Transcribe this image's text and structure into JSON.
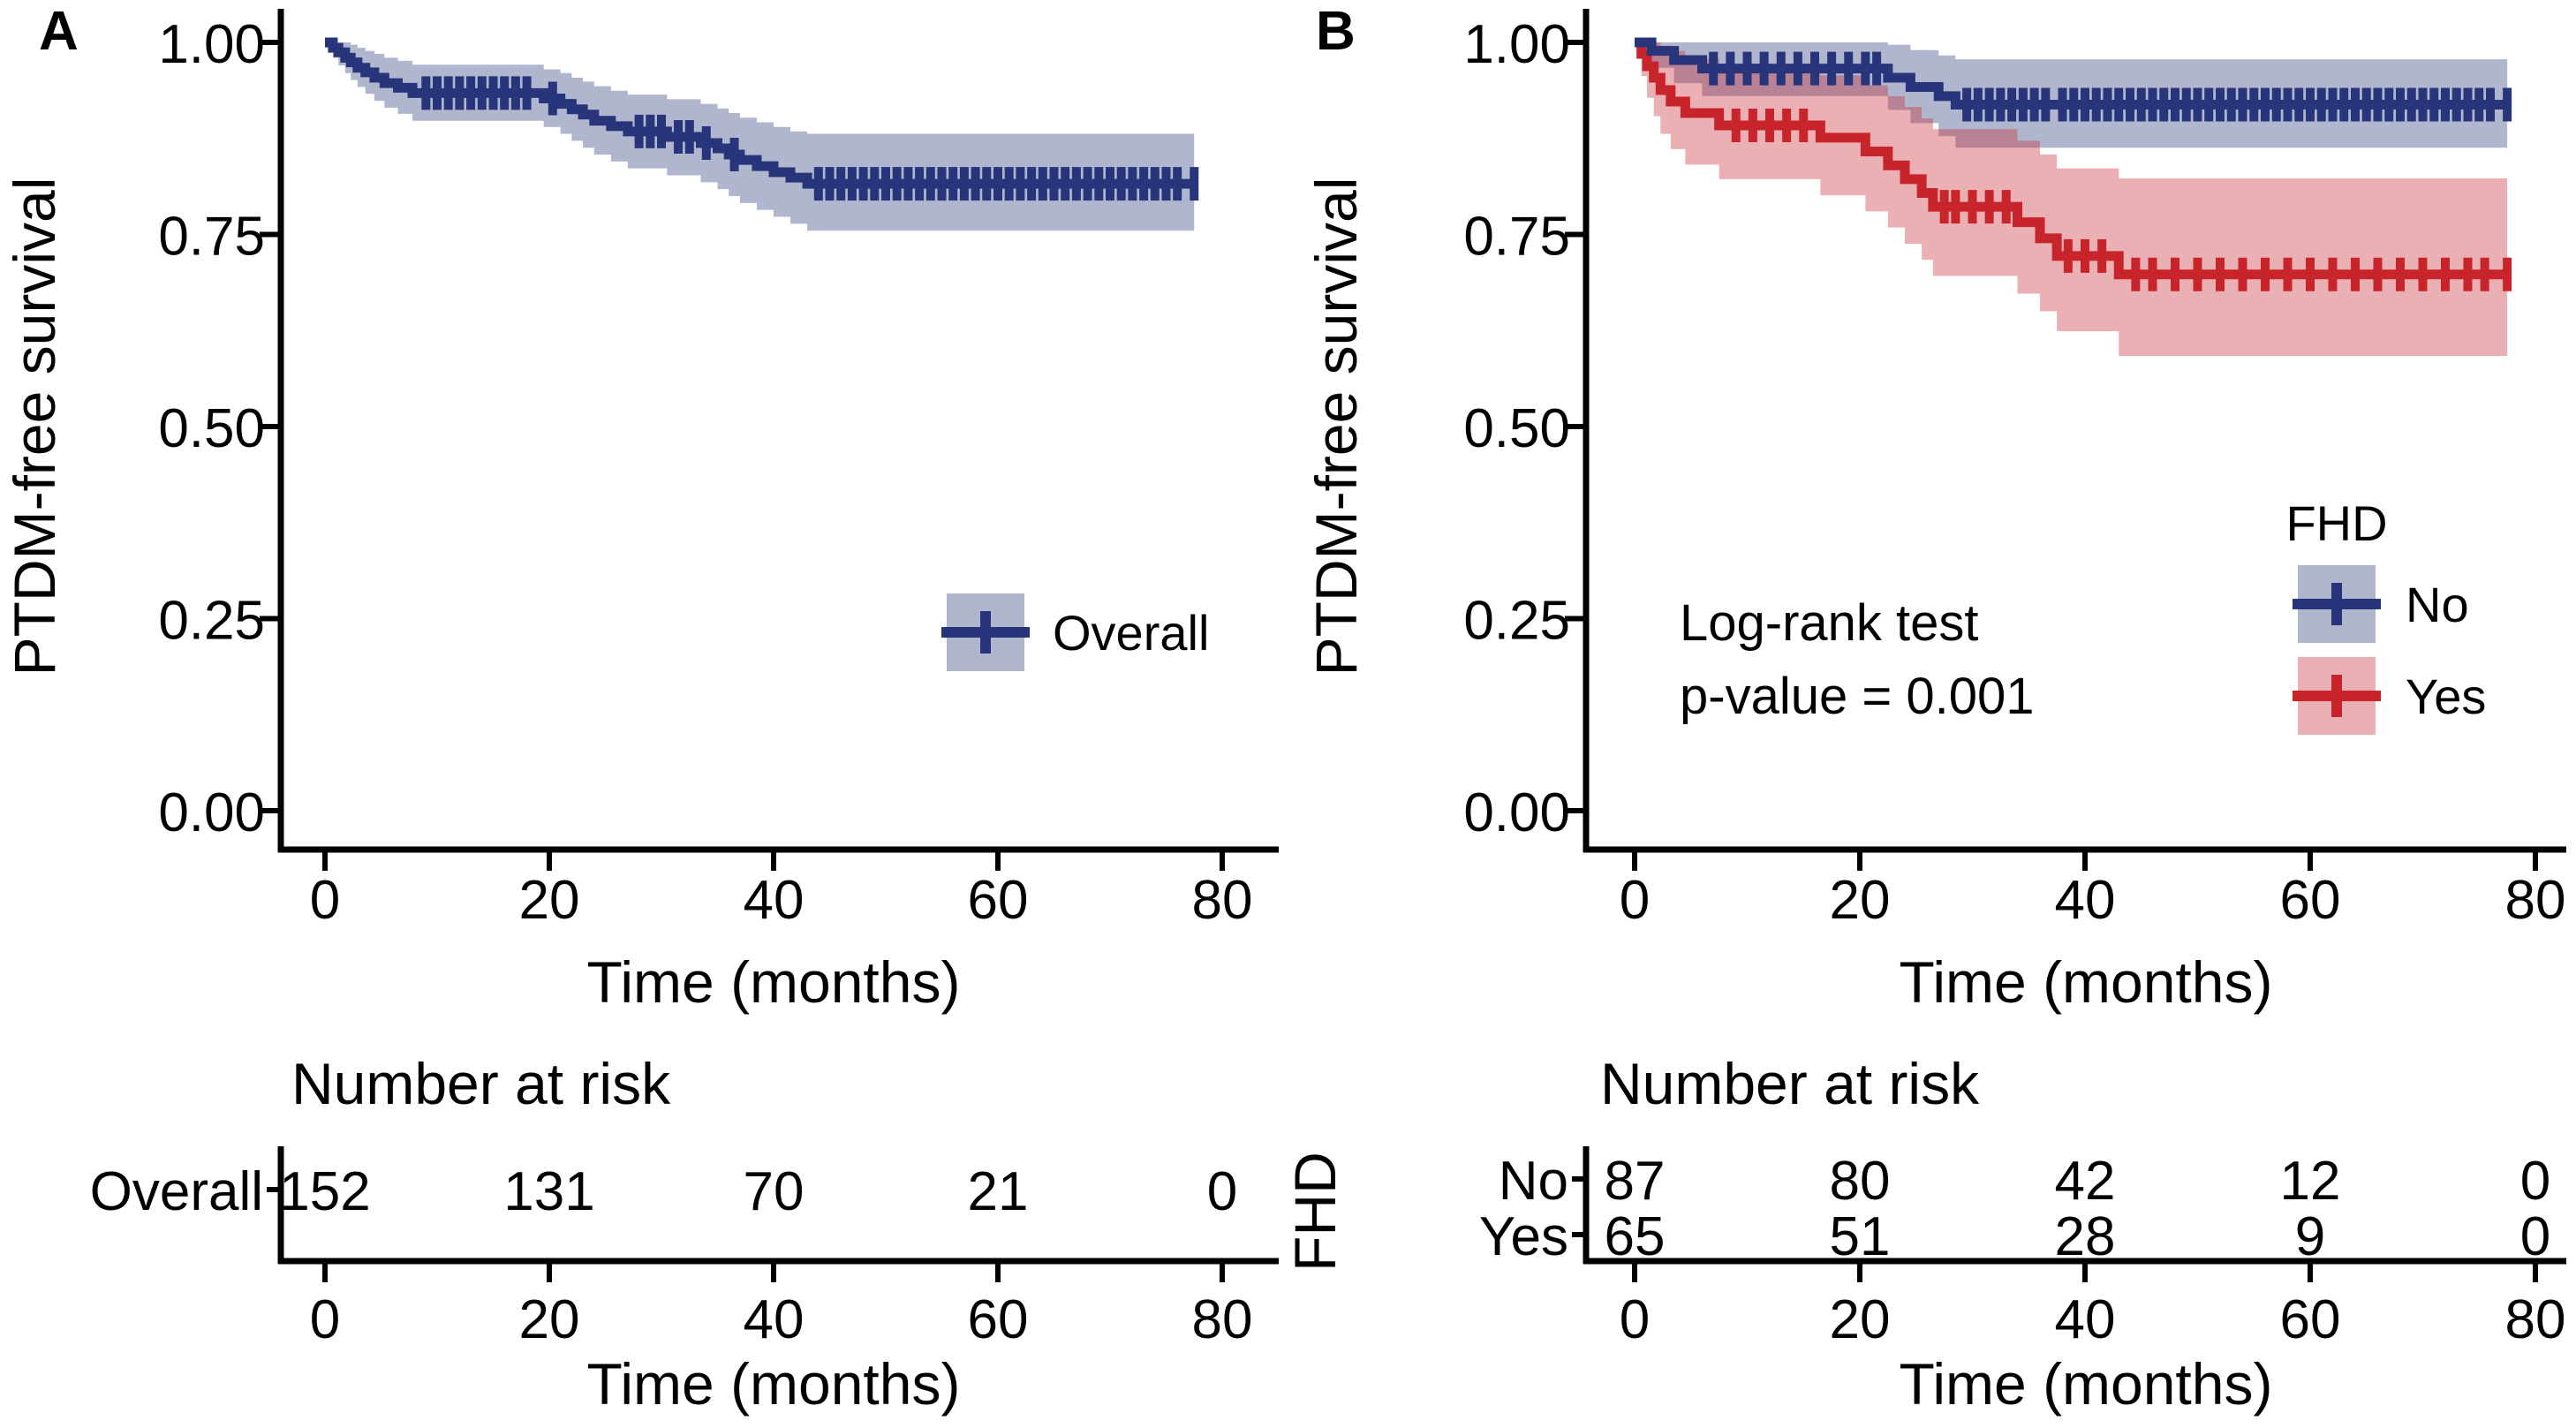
{
  "figure": {
    "background": "#FFFFFF",
    "description": "Kaplan-Meier PTDM-free survival curves with number-at-risk tables"
  },
  "chart_data": [
    {
      "panel_label": "A",
      "type": "line",
      "subtype": "kaplan-meier-step",
      "title": "",
      "xlabel": "Time (months)",
      "ylabel": "PTDM-free survival",
      "xlim": [
        0,
        82
      ],
      "ylim": [
        0,
        1
      ],
      "xticks": [
        0,
        20,
        40,
        60,
        80
      ],
      "yticks": [
        {
          "v": 0.0,
          "label": "0.00"
        },
        {
          "v": 0.25,
          "label": "0.25"
        },
        {
          "v": 0.5,
          "label": "0.50"
        },
        {
          "v": 0.75,
          "label": "0.75"
        },
        {
          "v": 1.0,
          "label": "1.00"
        }
      ],
      "grid": false,
      "legend": {
        "title": "",
        "position": "inside-right",
        "entries": [
          {
            "label": "Overall",
            "color": "#28357B"
          }
        ]
      },
      "series": [
        {
          "name": "Overall",
          "color": "#28357B",
          "band_opacity": 0.36,
          "end_time": 77.5,
          "steps": [
            [
              0,
              1.0,
              0.993,
              1.0
            ],
            [
              0.7,
              0.993,
              0.98,
              1.0
            ],
            [
              1.2,
              0.987,
              0.97,
              1.0
            ],
            [
              1.8,
              0.98,
              0.96,
              1.0
            ],
            [
              2.3,
              0.974,
              0.951,
              0.997
            ],
            [
              2.9,
              0.967,
              0.942,
              0.993
            ],
            [
              3.6,
              0.961,
              0.933,
              0.989
            ],
            [
              4.4,
              0.954,
              0.924,
              0.985
            ],
            [
              5.3,
              0.947,
              0.915,
              0.98
            ],
            [
              6.5,
              0.941,
              0.907,
              0.976
            ],
            [
              7.8,
              0.934,
              0.898,
              0.971
            ],
            [
              19.5,
              0.927,
              0.89,
              0.965
            ],
            [
              21,
              0.92,
              0.881,
              0.96
            ],
            [
              22,
              0.913,
              0.872,
              0.954
            ],
            [
              23,
              0.906,
              0.863,
              0.949
            ],
            [
              24,
              0.898,
              0.854,
              0.943
            ],
            [
              25.5,
              0.891,
              0.845,
              0.937
            ],
            [
              27,
              0.884,
              0.836,
              0.932
            ],
            [
              30.5,
              0.877,
              0.827,
              0.926
            ],
            [
              33.5,
              0.869,
              0.818,
              0.92
            ],
            [
              35,
              0.862,
              0.809,
              0.914
            ],
            [
              36,
              0.854,
              0.8,
              0.908
            ],
            [
              37,
              0.847,
              0.791,
              0.902
            ],
            [
              38.5,
              0.839,
              0.782,
              0.896
            ],
            [
              40,
              0.831,
              0.773,
              0.89
            ],
            [
              41.5,
              0.824,
              0.764,
              0.884
            ],
            [
              43,
              0.816,
              0.755,
              0.881
            ]
          ],
          "censor_times": [
            9,
            10,
            11,
            12,
            13,
            14,
            15,
            16,
            17,
            18,
            20.3,
            28,
            29,
            30,
            31.5,
            32.5,
            34,
            36.5,
            44,
            45,
            46,
            47,
            48,
            49,
            50,
            51,
            52,
            53,
            54,
            55,
            56,
            57,
            58,
            59,
            60,
            61,
            62,
            63,
            64,
            65,
            66,
            67,
            68,
            69,
            70,
            71,
            72,
            73,
            74,
            75,
            76,
            77.5
          ]
        }
      ],
      "risk_table": {
        "title": "Number at risk",
        "group_label": "",
        "times": [
          0,
          20,
          40,
          60,
          80
        ],
        "rows": [
          {
            "name": "Overall",
            "color": "#28357B",
            "values": [
              "152",
              "131",
              "70",
              "21",
              "0"
            ]
          }
        ]
      }
    },
    {
      "panel_label": "B",
      "type": "line",
      "subtype": "kaplan-meier-step",
      "title": "",
      "xlabel": "Time (months)",
      "ylabel": "PTDM-free survival",
      "xlim": [
        0,
        82
      ],
      "ylim": [
        0,
        1
      ],
      "xticks": [
        0,
        20,
        40,
        60,
        80
      ],
      "yticks": [
        {
          "v": 0.0,
          "label": "0.00"
        },
        {
          "v": 0.25,
          "label": "0.25"
        },
        {
          "v": 0.5,
          "label": "0.50"
        },
        {
          "v": 0.75,
          "label": "0.75"
        },
        {
          "v": 1.0,
          "label": "1.00"
        }
      ],
      "grid": false,
      "annotations": [
        "Log-rank test",
        "p-value = 0.001"
      ],
      "legend": {
        "title": "FHD",
        "position": "inside-right",
        "entries": [
          {
            "label": "No",
            "color": "#28357B"
          },
          {
            "label": "Yes",
            "color": "#C8242B"
          }
        ]
      },
      "series": [
        {
          "name": "No",
          "color": "#28357B",
          "band_opacity": 0.36,
          "end_time": 77.5,
          "steps": [
            [
              0,
              1.0,
              0.997,
              1.0
            ],
            [
              1.5,
              0.989,
              0.967,
              1.0
            ],
            [
              3.5,
              0.977,
              0.947,
              1.0
            ],
            [
              6,
              0.966,
              0.93,
              1.0
            ],
            [
              22.5,
              0.954,
              0.912,
              0.997
            ],
            [
              24.5,
              0.942,
              0.895,
              0.99
            ],
            [
              27,
              0.93,
              0.878,
              0.983
            ],
            [
              28.5,
              0.919,
              0.863,
              0.978
            ]
          ],
          "censor_times": [
            7,
            8.5,
            10,
            11.5,
            13,
            14.5,
            16,
            17.5,
            19,
            20.5,
            21.5,
            29.5,
            30.5,
            31.5,
            32.5,
            33.5,
            34.5,
            35.5,
            36.5,
            38,
            39,
            40,
            41,
            42,
            43,
            44,
            45,
            46,
            47,
            48,
            49,
            50,
            51,
            52,
            53,
            54,
            55,
            56,
            57,
            58,
            59,
            60,
            61,
            62,
            63,
            64,
            65,
            66,
            67,
            68,
            69,
            70,
            71,
            72,
            73,
            74,
            75,
            76,
            77.5
          ]
        },
        {
          "name": "Yes",
          "color": "#C8242B",
          "band_opacity": 0.36,
          "end_time": 77.5,
          "steps": [
            [
              0,
              1.0,
              0.995,
              1.0
            ],
            [
              0.6,
              0.985,
              0.956,
              1.0
            ],
            [
              1.1,
              0.969,
              0.928,
              1.0
            ],
            [
              1.7,
              0.954,
              0.904,
              1.0
            ],
            [
              2.3,
              0.938,
              0.881,
              0.996
            ],
            [
              3.2,
              0.923,
              0.861,
              0.989
            ],
            [
              4.5,
              0.908,
              0.841,
              0.979
            ],
            [
              7.5,
              0.892,
              0.822,
              0.969
            ],
            [
              16.5,
              0.876,
              0.801,
              0.957
            ],
            [
              20.5,
              0.858,
              0.78,
              0.944
            ],
            [
              22.5,
              0.84,
              0.759,
              0.93
            ],
            [
              24,
              0.822,
              0.738,
              0.916
            ],
            [
              25.5,
              0.804,
              0.717,
              0.901
            ],
            [
              26.5,
              0.786,
              0.696,
              0.887
            ],
            [
              34,
              0.766,
              0.673,
              0.872
            ],
            [
              36,
              0.745,
              0.65,
              0.854
            ],
            [
              37.5,
              0.722,
              0.624,
              0.836
            ],
            [
              43,
              0.698,
              0.592,
              0.823
            ]
          ],
          "censor_times": [
            9,
            10.5,
            12,
            13.5,
            15,
            27.5,
            28.5,
            30,
            31.5,
            33,
            38.5,
            40,
            41.5,
            44.5,
            46,
            48,
            50,
            52,
            54,
            56,
            58,
            60,
            62,
            64,
            66,
            68,
            70,
            72,
            74,
            75.5,
            77.5
          ]
        }
      ],
      "risk_table": {
        "title": "Number at risk",
        "group_label": "FHD",
        "times": [
          0,
          20,
          40,
          60,
          80
        ],
        "rows": [
          {
            "name": "No",
            "color": "#28357B",
            "values": [
              "87",
              "80",
              "42",
              "12",
              "0"
            ]
          },
          {
            "name": "Yes",
            "color": "#C8242B",
            "values": [
              "65",
              "51",
              "28",
              "9",
              "0"
            ]
          }
        ]
      }
    }
  ]
}
